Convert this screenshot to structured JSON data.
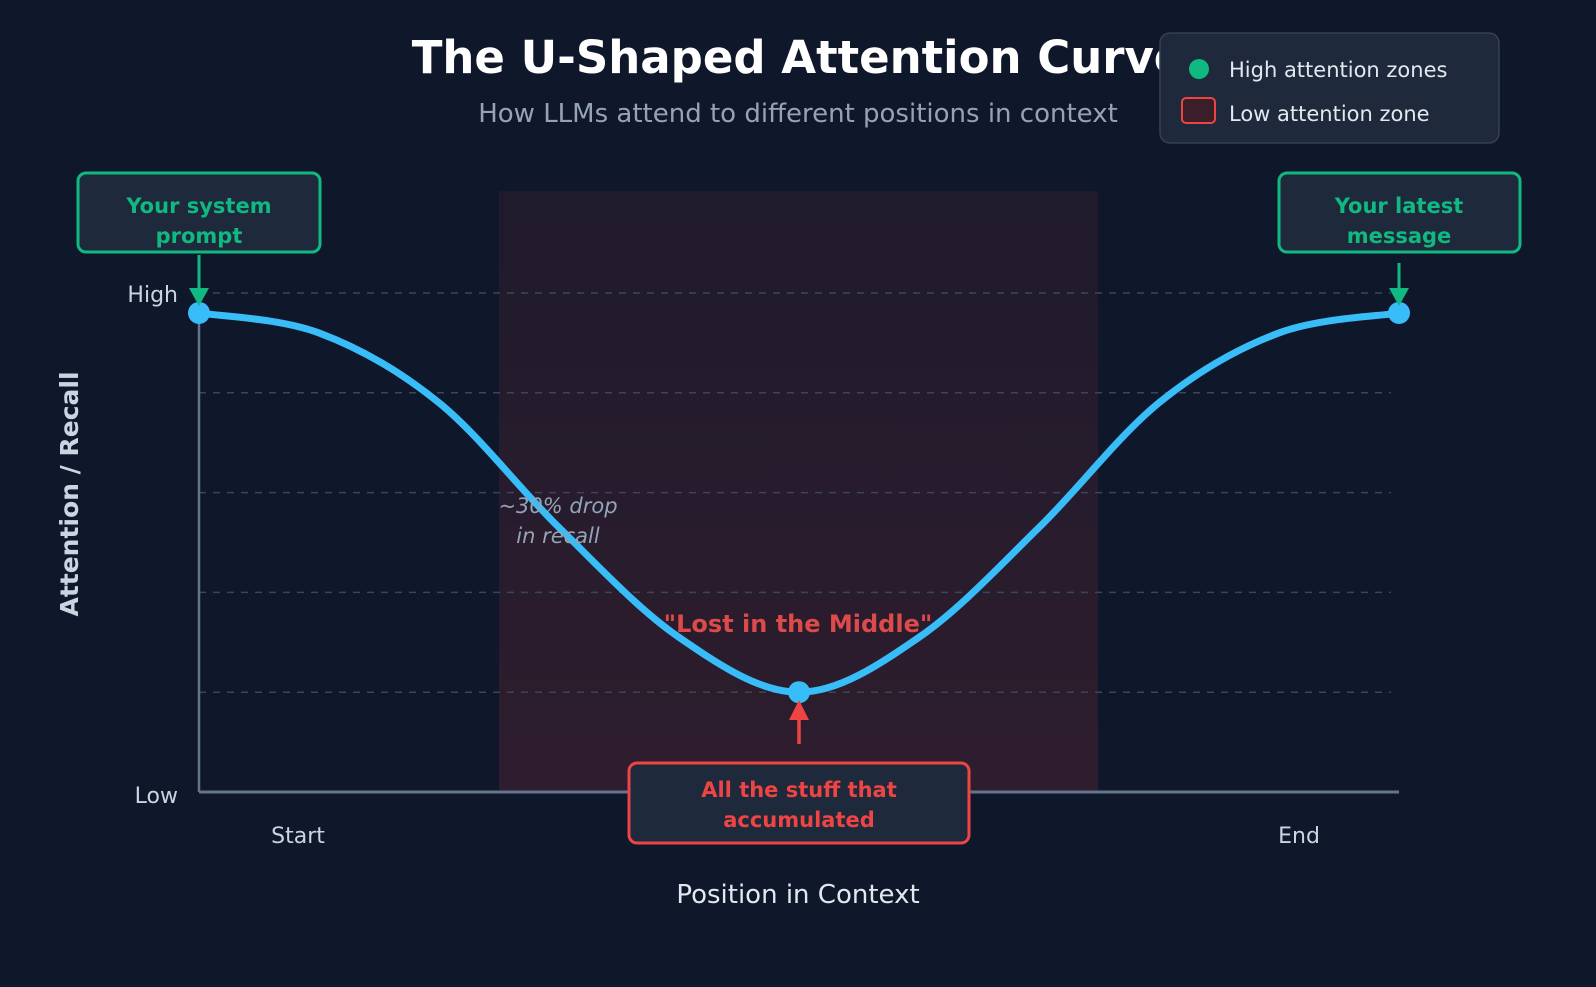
{
  "chart_data": {
    "type": "line",
    "title": "The U-Shaped Attention Curve",
    "subtitle": "How LLMs attend to different positions in context",
    "xlabel": "Position in Context",
    "ylabel": "Attention / Recall",
    "x_ticks": [
      "Start",
      "End"
    ],
    "y_ticks": [
      "Low",
      "High"
    ],
    "ylim": [
      0,
      1
    ],
    "grid": true,
    "legend_position": "top-right",
    "legend": [
      {
        "label": "High attention zones",
        "marker": "circle",
        "color": "#10b981"
      },
      {
        "label": "Low attention zone",
        "marker": "square",
        "color": "#ef4444"
      }
    ],
    "series": [
      {
        "color": "#38bdf8",
        "x": [
          0,
          0.1,
          0.2,
          0.3,
          0.4,
          0.5,
          0.6,
          0.7,
          0.8,
          0.9,
          1.0
        ],
        "y": [
          0.96,
          0.92,
          0.78,
          0.53,
          0.31,
          0.2,
          0.31,
          0.53,
          0.78,
          0.92,
          0.96
        ]
      }
    ],
    "highlighted_points": [
      {
        "x": 0,
        "y": 0.96
      },
      {
        "x": 0.5,
        "y": 0.2
      },
      {
        "x": 1.0,
        "y": 0.96
      }
    ],
    "low_zone": {
      "x_range": [
        0.25,
        0.75
      ],
      "color": "#ef4444"
    },
    "annotations": {
      "start_box": "Your system prompt",
      "start_box_lines": [
        "Your system",
        "prompt"
      ],
      "end_box_lines": [
        "Your latest",
        "message"
      ],
      "middle_box_lines": [
        "All the stuff that",
        "accumulated"
      ],
      "drop_note_lines": [
        "~30% drop",
        "in recall"
      ],
      "middle_label": "\"Lost in the Middle\""
    },
    "colors": {
      "background": "#0f172a",
      "curve": "#38bdf8",
      "high": "#10b981",
      "low": "#ef4444"
    }
  }
}
